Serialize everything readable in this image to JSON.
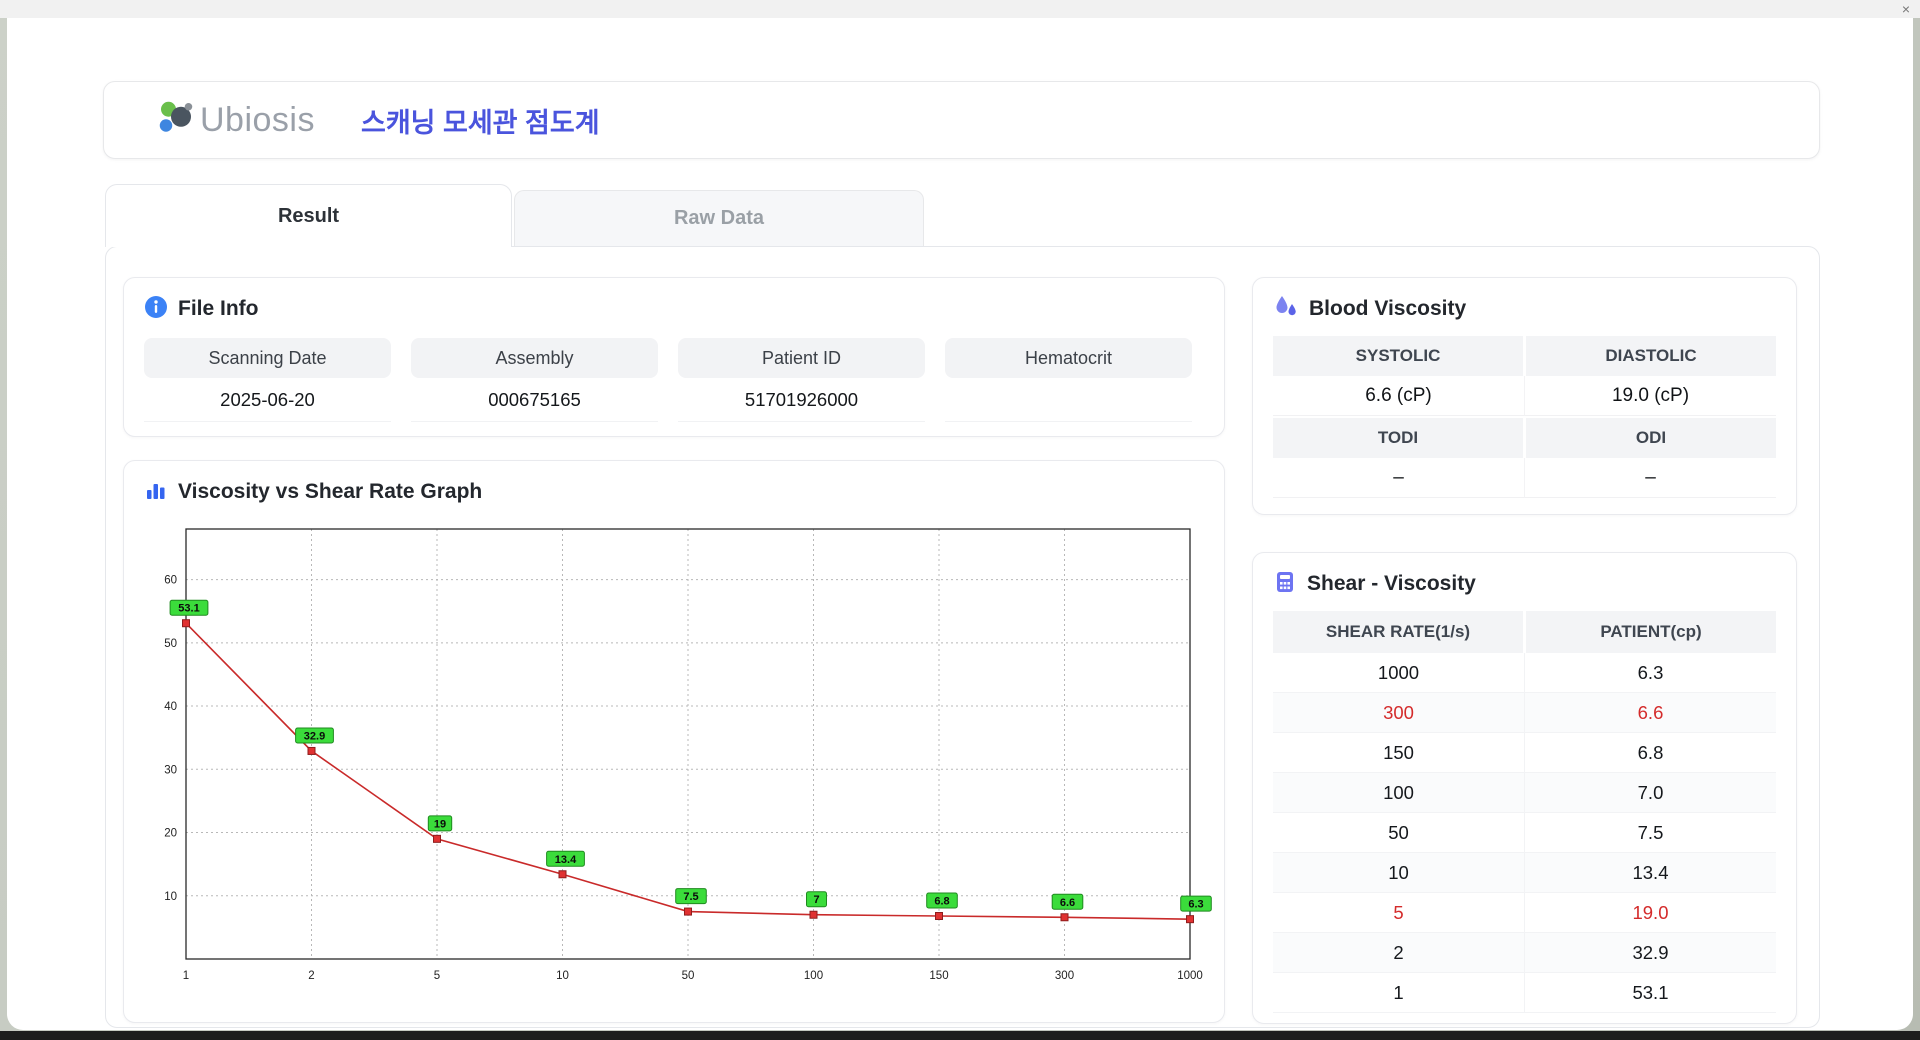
{
  "window": {
    "close_icon": "×"
  },
  "header": {
    "logo_text": "Ubiosis",
    "title": "스캐닝 모세관 점도계"
  },
  "tabs": [
    {
      "label": "Result",
      "active": true
    },
    {
      "label": "Raw Data",
      "active": false
    }
  ],
  "file_info": {
    "title": "File Info",
    "fields": [
      {
        "label": "Scanning Date",
        "value": "2025-06-20"
      },
      {
        "label": "Assembly",
        "value": "000675165"
      },
      {
        "label": "Patient ID",
        "value": "51701926000"
      },
      {
        "label": "Hematocrit",
        "value": ""
      }
    ]
  },
  "graph": {
    "title": "Viscosity vs Shear Rate Graph"
  },
  "chart_data": {
    "type": "line",
    "title": "Viscosity vs Shear Rate Graph",
    "categories": [
      "1",
      "2",
      "5",
      "10",
      "50",
      "100",
      "150",
      "300",
      "1000"
    ],
    "values": [
      53.1,
      32.9,
      19,
      13.4,
      7.5,
      7,
      6.8,
      6.6,
      6.3
    ],
    "point_labels": [
      "53.1",
      "32.9",
      "19",
      "13.4",
      "7.5",
      "7",
      "6.8",
      "6.6",
      "6.3"
    ],
    "xlabel": "",
    "ylabel": "",
    "ylim": [
      0,
      68
    ],
    "yticks": [
      10,
      20,
      30,
      40,
      50,
      60
    ],
    "grid": true,
    "legend": "none",
    "line_color": "#c92a2a",
    "marker_color": "#e03131",
    "marker_stroke": "#8f1d1d",
    "point_label_bg": "#3bdc3b",
    "point_label_border": "#1f8a1f"
  },
  "blood_viscosity": {
    "title": "Blood Viscosity",
    "sections": [
      {
        "headers": [
          "SYSTOLIC",
          "DIASTOLIC"
        ],
        "values": [
          "6.6 (cP)",
          "19.0 (cP)"
        ]
      },
      {
        "headers": [
          "TODI",
          "ODI"
        ],
        "values": [
          "–",
          "–"
        ]
      }
    ]
  },
  "shear_viscosity": {
    "title": "Shear - Viscosity",
    "headers": [
      "SHEAR RATE(1/s)",
      "PATIENT(cp)"
    ],
    "highlight_color": "#d32f2f",
    "rows": [
      {
        "rate": "1000",
        "patient": "6.3",
        "highlight": false
      },
      {
        "rate": "300",
        "patient": "6.6",
        "highlight": true
      },
      {
        "rate": "150",
        "patient": "6.8",
        "highlight": false
      },
      {
        "rate": "100",
        "patient": "7.0",
        "highlight": false
      },
      {
        "rate": "50",
        "patient": "7.5",
        "highlight": false
      },
      {
        "rate": "10",
        "patient": "13.4",
        "highlight": false
      },
      {
        "rate": "5",
        "patient": "19.0",
        "highlight": true
      },
      {
        "rate": "2",
        "patient": "32.9",
        "highlight": false
      },
      {
        "rate": "1",
        "patient": "53.1",
        "highlight": false
      }
    ]
  }
}
